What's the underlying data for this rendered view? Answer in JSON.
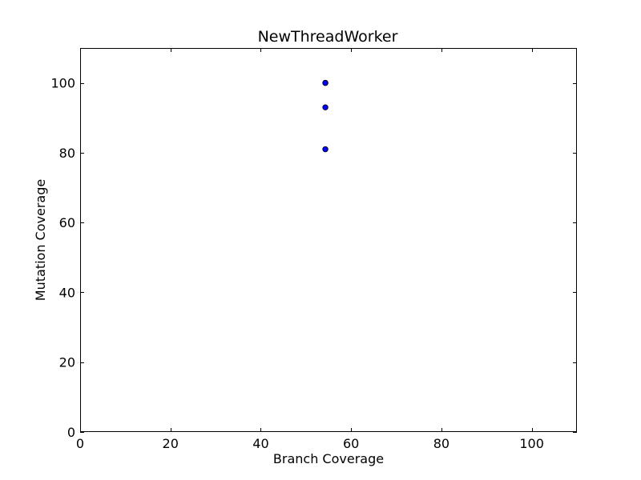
{
  "chart_data": {
    "type": "scatter",
    "title": "NewThreadWorker",
    "xlabel": "Branch Coverage",
    "ylabel": "Mutation Coverage",
    "xlim": [
      0,
      110
    ],
    "ylim": [
      0,
      110
    ],
    "x_ticks": [
      0,
      20,
      40,
      60,
      80,
      100
    ],
    "y_ticks": [
      0,
      20,
      40,
      60,
      80,
      100
    ],
    "x_tick_labels": [
      "0",
      "20",
      "40",
      "60",
      "80",
      "100"
    ],
    "y_tick_labels": [
      "0",
      "20",
      "40",
      "60",
      "80",
      "100"
    ],
    "grid": false,
    "legend": "none",
    "marker_color": "#0000ff",
    "marker_edge_color": "#000000",
    "points": [
      {
        "x": 54.3,
        "y": 100
      },
      {
        "x": 54.3,
        "y": 100
      },
      {
        "x": 54.3,
        "y": 93
      },
      {
        "x": 54.3,
        "y": 81
      }
    ]
  }
}
